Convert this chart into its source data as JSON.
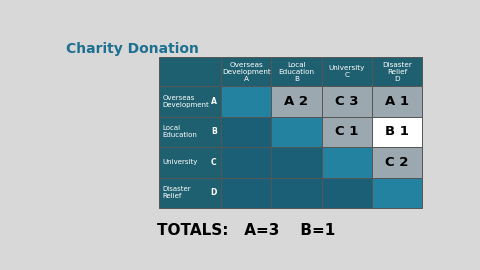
{
  "title": "Charity Donation",
  "title_color": "#1e7090",
  "title_fontsize": 10,
  "col_header_labels": [
    "Overseas\nDevelopment\nA",
    "Local\nEducation\nB",
    "University\nC",
    "Disaster\nRelief\nD"
  ],
  "row_label_texts": [
    "Overseas\nDevelopment",
    "Local\nEducation",
    "University",
    "Disaster\nRelief"
  ],
  "row_letters": [
    "A",
    "B",
    "C",
    "D"
  ],
  "totals_text": "TOTALS:   A=3    B=1",
  "color_teal_dark": "#1a5f75",
  "color_teal_mid": "#2282a0",
  "color_gray": "#9ba8b0",
  "color_white": "#ffffff",
  "color_header_bg": "#1e6070",
  "n": 4,
  "cell_data": {
    "0,0": {
      "text": "",
      "bg": "#2282a0"
    },
    "0,1": {
      "text": "A 2",
      "bg": "#9ba8b0"
    },
    "0,2": {
      "text": "C 3",
      "bg": "#9ba8b0"
    },
    "0,3": {
      "text": "A 1",
      "bg": "#9ba8b0"
    },
    "1,0": {
      "text": "",
      "bg": "#1a5f75"
    },
    "1,1": {
      "text": "",
      "bg": "#2282a0"
    },
    "1,2": {
      "text": "C 1",
      "bg": "#9ba8b0"
    },
    "1,3": {
      "text": "B 1",
      "bg": "#ffffff"
    },
    "2,0": {
      "text": "",
      "bg": "#1a5f75"
    },
    "2,1": {
      "text": "",
      "bg": "#1a5f75"
    },
    "2,2": {
      "text": "",
      "bg": "#2282a0"
    },
    "2,3": {
      "text": "C 2",
      "bg": "#9ba8b0"
    },
    "3,0": {
      "text": "",
      "bg": "#1a5f75"
    },
    "3,1": {
      "text": "",
      "bg": "#1a5f75"
    },
    "3,2": {
      "text": "",
      "bg": "#1a5f75"
    },
    "3,3": {
      "text": "",
      "bg": "#2282a0"
    }
  }
}
